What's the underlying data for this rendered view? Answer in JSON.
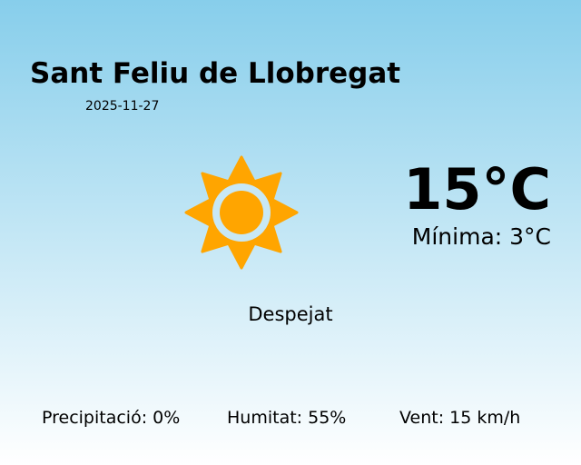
{
  "location": {
    "city": "Sant Feliu de Llobregat",
    "date": "2025-11-27"
  },
  "current": {
    "temperature": "15°C",
    "minimum": "Mínima: 3°C",
    "condition": "Despejat",
    "icon": "sun-icon"
  },
  "stats": {
    "precipitation": "Precipitació: 0%",
    "humidity": "Humitat: 55%",
    "wind": "Vent: 15 km/h"
  },
  "colors": {
    "sun": "#FFA500",
    "background_top": "#87CEEB",
    "background_bottom": "#FFFFFF"
  }
}
